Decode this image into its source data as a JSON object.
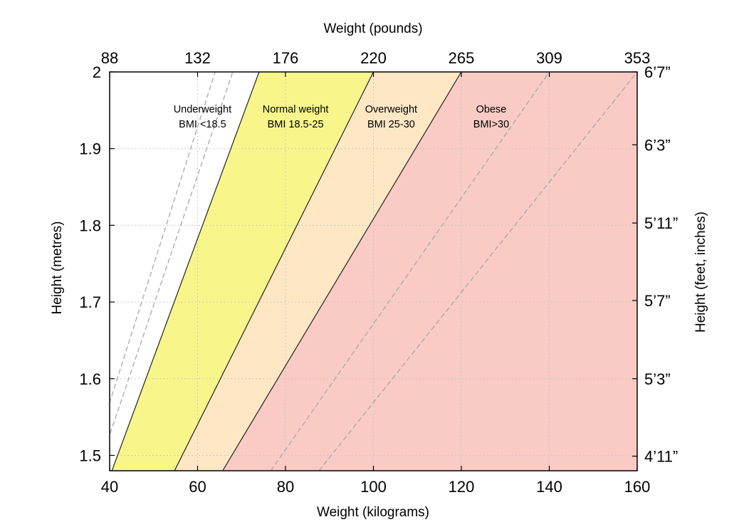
{
  "chart_data": {
    "type": "area",
    "title": "",
    "x_bottom": {
      "label": "Weight (kilograms)",
      "range": [
        40,
        160
      ],
      "ticks": [
        40,
        60,
        80,
        100,
        120,
        140,
        160
      ]
    },
    "x_top": {
      "label": "Weight (pounds)",
      "ticks": [
        "88",
        "132",
        "176",
        "220",
        "265",
        "309",
        "353"
      ]
    },
    "y_left": {
      "label": "Height (metres)",
      "range": [
        1.48,
        2.0
      ],
      "ticks": [
        {
          "value": 1.5,
          "label": "1.5"
        },
        {
          "value": 1.6,
          "label": "1.6"
        },
        {
          "value": 1.7,
          "label": "1.7"
        },
        {
          "value": 1.8,
          "label": "1.8"
        },
        {
          "value": 1.9,
          "label": "1.9"
        },
        {
          "value": 2.0,
          "label": "2"
        }
      ]
    },
    "y_right": {
      "label": "Height (feet, inches)",
      "ticks": [
        {
          "value": 1.499,
          "label": "4’11”"
        },
        {
          "value": 1.6,
          "label": "5’3”"
        },
        {
          "value": 1.702,
          "label": "5’7”"
        },
        {
          "value": 1.803,
          "label": "5’11”"
        },
        {
          "value": 1.905,
          "label": "6’3”"
        },
        {
          "value": 2.007,
          "label": "6’7”"
        }
      ]
    },
    "grid": true,
    "categories": [
      {
        "name": "Underweight",
        "line1": "Underweight",
        "line2": "BMI <18.5",
        "bmi_min": 0,
        "bmi_max": 18.5,
        "color": "#ffffff"
      },
      {
        "name": "Normal weight",
        "line1": "Normal weight",
        "line2": "BMI 18.5-25",
        "bmi_min": 18.5,
        "bmi_max": 25,
        "color": "#f8f68a"
      },
      {
        "name": "Overweight",
        "line1": "Overweight",
        "line2": "BMI 25-30",
        "bmi_min": 25,
        "bmi_max": 30,
        "color": "#fde7c5"
      },
      {
        "name": "Obese",
        "line1": "Obese",
        "line2": "BMI>30",
        "bmi_min": 30,
        "bmi_max": null,
        "color": "#f9cbc4"
      }
    ],
    "boundary_bmi": [
      18.5,
      25,
      30
    ],
    "dashed_bmi": [
      16,
      17,
      35,
      40
    ]
  }
}
